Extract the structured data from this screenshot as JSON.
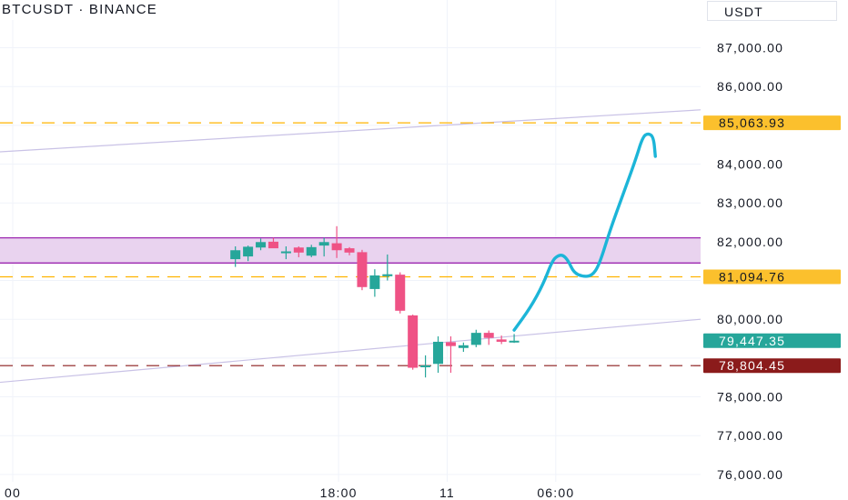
{
  "header": {
    "symbol": "BTCUSDT · BINANCE"
  },
  "price_axis": {
    "unit": "USDT"
  },
  "colors": {
    "up": "#26a69a",
    "down": "#ef5285",
    "zone_fill": "#e9d3ef",
    "zone_stroke": "#9c27b0",
    "orange": "#ffb300",
    "maroon": "#8b1b1b",
    "teal_label": "#26a69a",
    "path": "#1cb5d8",
    "channel": "#c9c2e6",
    "grid": "#f0f3fa"
  },
  "chart_data": {
    "type": "candlestick",
    "title": "",
    "y_ticks": [
      "87,000.00",
      "86,000.00",
      "84,000.00",
      "83,000.00",
      "82,000.00",
      "80,000.00",
      "78,000.00",
      "77,000.00",
      "76,000.00"
    ],
    "y_tick_values": [
      87000,
      86000,
      84000,
      83000,
      82000,
      80000,
      78000,
      77000,
      76000
    ],
    "x_ticks": [
      {
        "label": "00",
        "t": 0
      },
      {
        "label": "18:00",
        "t": 18
      },
      {
        "label": "11",
        "t": 24
      },
      {
        "label": "06:00",
        "t": 30
      }
    ],
    "price_labels": [
      {
        "name": "resistance-level",
        "text": "85,063.93",
        "value": 85063.93,
        "style": "orange"
      },
      {
        "name": "support-level",
        "text": "81,094.76",
        "value": 81094.76,
        "style": "orange"
      },
      {
        "name": "last-price",
        "text": "79,447.35",
        "value": 79447.35,
        "style": "teal"
      },
      {
        "name": "low-level",
        "text": "78,804.45",
        "value": 78804.45,
        "style": "maroon"
      }
    ],
    "zone": {
      "top": 82100,
      "bottom": 81450
    },
    "channel": {
      "upper": [
        {
          "t": -12,
          "v": 84000
        },
        {
          "t": 38,
          "v": 85400
        }
      ],
      "lower": [
        {
          "t": -12,
          "v": 77900
        },
        {
          "t": 38,
          "v": 80000
        }
      ]
    },
    "candles": [
      {
        "t": 12.3,
        "o": 81550,
        "h": 81880,
        "l": 81350,
        "c": 81780
      },
      {
        "t": 13.0,
        "o": 81620,
        "h": 81900,
        "l": 81500,
        "c": 81870
      },
      {
        "t": 13.7,
        "o": 81850,
        "h": 82080,
        "l": 81780,
        "c": 81990
      },
      {
        "t": 14.4,
        "o": 82000,
        "h": 82100,
        "l": 81850,
        "c": 81830
      },
      {
        "t": 15.1,
        "o": 81750,
        "h": 81880,
        "l": 81550,
        "c": 81750
      },
      {
        "t": 15.8,
        "o": 81850,
        "h": 81880,
        "l": 81600,
        "c": 81720
      },
      {
        "t": 16.5,
        "o": 81640,
        "h": 81920,
        "l": 81600,
        "c": 81860
      },
      {
        "t": 17.2,
        "o": 81900,
        "h": 82100,
        "l": 81620,
        "c": 81990
      },
      {
        "t": 17.9,
        "o": 81960,
        "h": 82400,
        "l": 81580,
        "c": 81780
      },
      {
        "t": 18.6,
        "o": 81830,
        "h": 81860,
        "l": 81650,
        "c": 81720
      },
      {
        "t": 19.3,
        "o": 81730,
        "h": 81790,
        "l": 80750,
        "c": 80830
      },
      {
        "t": 20.0,
        "o": 80780,
        "h": 81290,
        "l": 80580,
        "c": 81130
      },
      {
        "t": 20.7,
        "o": 81110,
        "h": 81670,
        "l": 81000,
        "c": 81160
      },
      {
        "t": 21.4,
        "o": 81150,
        "h": 81210,
        "l": 80150,
        "c": 80220
      },
      {
        "t": 22.1,
        "o": 80100,
        "h": 80120,
        "l": 78700,
        "c": 78750
      },
      {
        "t": 22.8,
        "o": 78770,
        "h": 79070,
        "l": 78500,
        "c": 78810
      },
      {
        "t": 23.5,
        "o": 78850,
        "h": 79560,
        "l": 78620,
        "c": 79420
      },
      {
        "t": 24.2,
        "o": 79410,
        "h": 79560,
        "l": 78620,
        "c": 79310
      },
      {
        "t": 24.9,
        "o": 79260,
        "h": 79400,
        "l": 79160,
        "c": 79330
      },
      {
        "t": 25.6,
        "o": 79340,
        "h": 79730,
        "l": 79280,
        "c": 79650
      },
      {
        "t": 26.3,
        "o": 79650,
        "h": 79710,
        "l": 79340,
        "c": 79520
      },
      {
        "t": 27.0,
        "o": 79480,
        "h": 79580,
        "l": 79360,
        "c": 79420
      },
      {
        "t": 27.7,
        "o": 79430,
        "h": 79620,
        "l": 79390,
        "c": 79447.35
      }
    ],
    "projection": [
      {
        "t": 27.7,
        "v": 79720
      },
      {
        "t": 28.6,
        "v": 80300
      },
      {
        "t": 29.3,
        "v": 80900
      },
      {
        "t": 29.8,
        "v": 81500
      },
      {
        "t": 30.1,
        "v": 81640
      },
      {
        "t": 30.4,
        "v": 81660
      },
      {
        "t": 30.7,
        "v": 81500
      },
      {
        "t": 31.0,
        "v": 81200
      },
      {
        "t": 31.5,
        "v": 81100
      },
      {
        "t": 32.0,
        "v": 81120
      },
      {
        "t": 32.4,
        "v": 81400
      },
      {
        "t": 33.0,
        "v": 82300
      },
      {
        "t": 33.7,
        "v": 83200
      },
      {
        "t": 34.4,
        "v": 84100
      },
      {
        "t": 34.8,
        "v": 84700
      },
      {
        "t": 35.1,
        "v": 84800
      },
      {
        "t": 35.4,
        "v": 84700
      },
      {
        "t": 35.5,
        "v": 84200
      }
    ],
    "ylim": [
      75950,
      87200
    ],
    "xlim": [
      -0.2,
      38.0
    ]
  }
}
